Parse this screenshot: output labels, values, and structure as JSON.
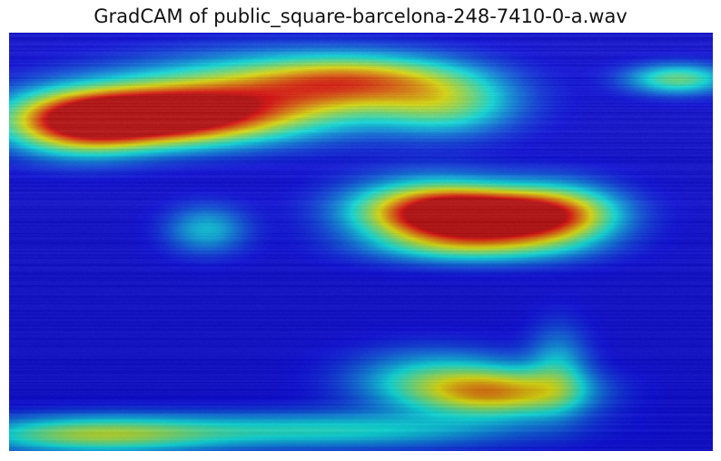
{
  "chart_data": {
    "type": "heatmap",
    "title": "GradCAM of public_square-barcelona-248-7410-0-a.wav",
    "xlabel": "",
    "ylabel": "",
    "axes_visible": false,
    "colormap": "jet",
    "overlay": "spectrogram",
    "hotspots": [
      {
        "x": 0.2,
        "y": 0.2,
        "intensity": 1.0,
        "sx": 0.11,
        "sy": 0.045
      },
      {
        "x": 0.1,
        "y": 0.22,
        "intensity": 0.55,
        "sx": 0.07,
        "sy": 0.05
      },
      {
        "x": 0.36,
        "y": 0.15,
        "intensity": 0.55,
        "sx": 0.14,
        "sy": 0.06
      },
      {
        "x": 0.5,
        "y": 0.11,
        "intensity": 0.45,
        "sx": 0.1,
        "sy": 0.04
      },
      {
        "x": 0.62,
        "y": 0.17,
        "intensity": 0.35,
        "sx": 0.07,
        "sy": 0.05
      },
      {
        "x": 0.95,
        "y": 0.11,
        "intensity": 0.4,
        "sx": 0.05,
        "sy": 0.025
      },
      {
        "x": 0.68,
        "y": 0.44,
        "intensity": 0.95,
        "sx": 0.09,
        "sy": 0.04
      },
      {
        "x": 0.6,
        "y": 0.42,
        "intensity": 0.55,
        "sx": 0.08,
        "sy": 0.05
      },
      {
        "x": 0.78,
        "y": 0.43,
        "intensity": 0.4,
        "sx": 0.06,
        "sy": 0.05
      },
      {
        "x": 0.66,
        "y": 0.51,
        "intensity": 0.3,
        "sx": 0.1,
        "sy": 0.03
      },
      {
        "x": 0.28,
        "y": 0.47,
        "intensity": 0.25,
        "sx": 0.04,
        "sy": 0.04
      },
      {
        "x": 0.7,
        "y": 0.86,
        "intensity": 0.55,
        "sx": 0.08,
        "sy": 0.04
      },
      {
        "x": 0.6,
        "y": 0.83,
        "intensity": 0.3,
        "sx": 0.08,
        "sy": 0.05
      },
      {
        "x": 0.12,
        "y": 0.96,
        "intensity": 0.45,
        "sx": 0.12,
        "sy": 0.03
      },
      {
        "x": 0.45,
        "y": 0.95,
        "intensity": 0.3,
        "sx": 0.18,
        "sy": 0.03
      },
      {
        "x": 0.78,
        "y": 0.8,
        "intensity": 0.22,
        "sx": 0.03,
        "sy": 0.07
      }
    ],
    "background_level": 0.12
  }
}
